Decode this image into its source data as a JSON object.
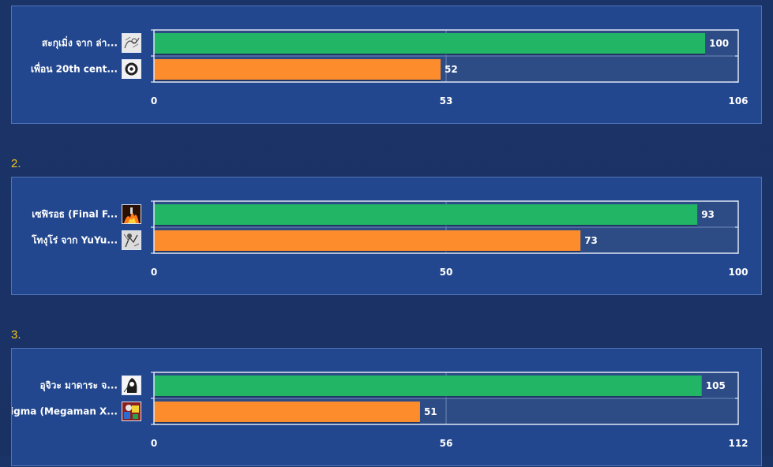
{
  "colors": {
    "background": "#1b3468",
    "panel": "#22478f",
    "panel_border": "#4f74b8",
    "plot_bg": "#2d4c86",
    "plot_border": "#dfe6f3",
    "bar_first": "#22b565",
    "bar_second": "#fd8c2c",
    "index_text": "#f5c518",
    "text": "#ffffff"
  },
  "chart_data": [
    {
      "type": "bar",
      "orientation": "horizontal",
      "categories": [
        "สะกุเมิ่ง จาก ล่า...",
        "เพื่อน 20th cent..."
      ],
      "thumb_icons": [
        "manga-sketch-icon",
        "eye-mask-icon"
      ],
      "values": [
        100,
        52
      ],
      "xlim": [
        0,
        106
      ],
      "ticks": [
        "0",
        "53",
        "106"
      ],
      "grid": true
    },
    {
      "index_label": "2.",
      "type": "bar",
      "orientation": "horizontal",
      "categories": [
        "เซฟิรอธ (Final F...",
        "โทงุโร่ จาก YuYu..."
      ],
      "thumb_icons": [
        "fire-character-icon",
        "manga-fighter-icon"
      ],
      "values": [
        93,
        73
      ],
      "xlim": [
        0,
        100
      ],
      "ticks": [
        "0",
        "50",
        "100"
      ],
      "grid": true
    },
    {
      "index_label": "3.",
      "type": "bar",
      "orientation": "horizontal",
      "categories": [
        "อุจิวะ มาดาระ  จ...",
        "Sigma (Megaman X..."
      ],
      "thumb_icons": [
        "ninja-manga-icon",
        "robot-colorful-icon"
      ],
      "values": [
        105,
        51
      ],
      "xlim": [
        0,
        112
      ],
      "ticks": [
        "0",
        "56",
        "112"
      ],
      "grid": true
    }
  ]
}
